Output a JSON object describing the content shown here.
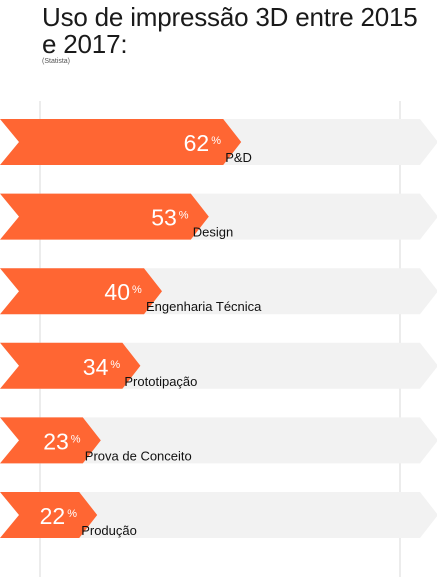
{
  "chart_data": {
    "type": "bar",
    "title": "Uso de impressão 3D entre 2015 e 2017:",
    "source": "(Statista)",
    "categories": [
      "P&D",
      "Design",
      "Engenharia Técnica",
      "Prototipação",
      "Prova de Conceito",
      "Produção"
    ],
    "values": [
      62,
      53,
      40,
      34,
      23,
      22
    ],
    "value_suffix": "%",
    "xlim": [
      0,
      100
    ],
    "orientation": "horizontal",
    "grid": true,
    "colors": {
      "bar": "#ff6633",
      "track": "#f2f2f2",
      "grid": "#d9d9d9",
      "label_on_bar": "#ffffff",
      "text": "#111111"
    }
  }
}
